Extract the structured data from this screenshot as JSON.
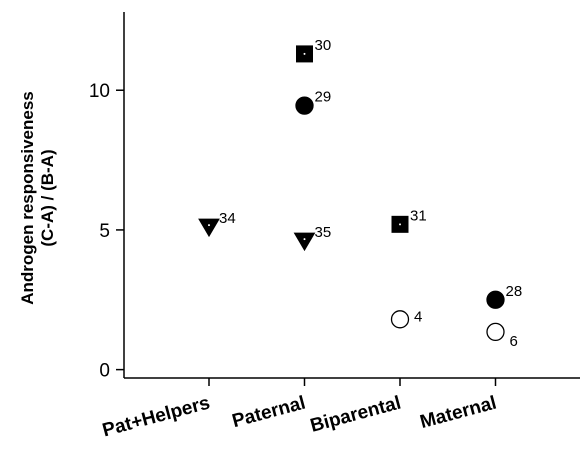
{
  "chart_data": {
    "type": "scatter",
    "ylabel_line1": "Androgen responsiveness",
    "ylabel_line2": "(C-A) / (B-A)",
    "categories": [
      "Pat+Helpers",
      "Paternal",
      "Biparental",
      "Maternal"
    ],
    "ylim": [
      -0.3,
      12.8
    ],
    "yticks": [
      0,
      5,
      10
    ],
    "grid": false,
    "points": [
      {
        "category": "Pat+Helpers",
        "y": 5.1,
        "marker": "triangle-down",
        "filled": true,
        "label": "34"
      },
      {
        "category": "Paternal",
        "y": 11.3,
        "marker": "square",
        "filled": true,
        "label": "30"
      },
      {
        "category": "Paternal",
        "y": 9.45,
        "marker": "circle",
        "filled": true,
        "label": "29"
      },
      {
        "category": "Paternal",
        "y": 4.6,
        "marker": "triangle-down",
        "filled": true,
        "label": "35"
      },
      {
        "category": "Biparental",
        "y": 5.2,
        "marker": "square",
        "filled": true,
        "label": "31"
      },
      {
        "category": "Biparental",
        "y": 1.8,
        "marker": "circle",
        "filled": false,
        "label": "4"
      },
      {
        "category": "Maternal",
        "y": 2.5,
        "marker": "circle",
        "filled": true,
        "label": "28"
      },
      {
        "category": "Maternal",
        "y": 1.35,
        "marker": "circle",
        "filled": false,
        "label": "6"
      }
    ]
  }
}
